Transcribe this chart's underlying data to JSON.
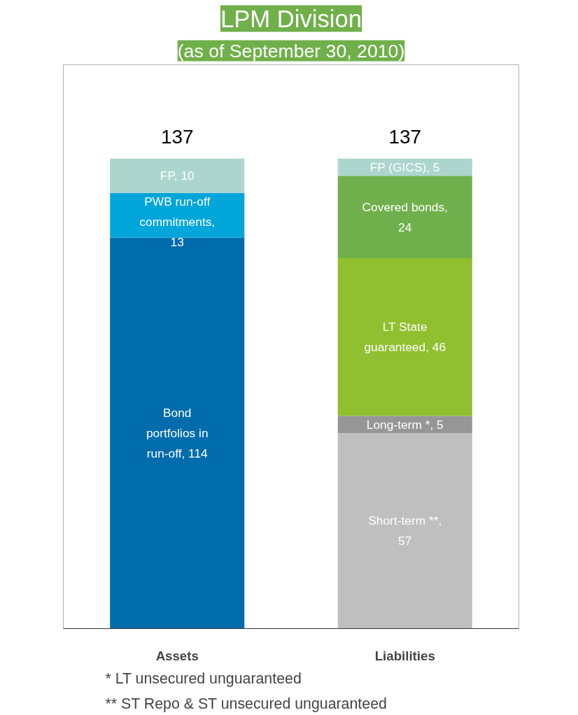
{
  "chart_data": {
    "type": "bar",
    "stacked": true,
    "title": "LPM Division",
    "subtitle": "(as of September 30, 2010)",
    "categories": [
      "Assets",
      "Liabilities"
    ],
    "series": [
      {
        "colors": [
          "#006cac",
          "#bfbfbf"
        ],
        "values": [
          114,
          57
        ],
        "value_labels": [
          "Bond portfolios in run-off, 114",
          "Short-term **, 57"
        ]
      },
      {
        "colors": [
          "#00a5da",
          "#969696"
        ],
        "values": [
          13,
          5
        ],
        "value_labels": [
          "PWB run-off commitments, 13",
          "Long-term *, 5"
        ]
      },
      {
        "colors": [
          "#acd6cd",
          "#90bf2f"
        ],
        "values": [
          10,
          46
        ],
        "value_labels": [
          "FP, 10",
          "LT State guaranteed, 46"
        ]
      },
      {
        "colors": [
          null,
          "#70b04c"
        ],
        "values": [
          null,
          24
        ],
        "value_labels": [
          null,
          "Covered bonds, 24"
        ]
      },
      {
        "colors": [
          null,
          "#acd6cd"
        ],
        "values": [
          null,
          5
        ],
        "value_labels": [
          null,
          "FP (GICS), 5"
        ]
      }
    ],
    "totals": [
      "137",
      "137"
    ],
    "annotations": [
      "*\tLT unsecured unguaranteed",
      "**\tST Repo & ST unsecured unguaranteed"
    ]
  }
}
